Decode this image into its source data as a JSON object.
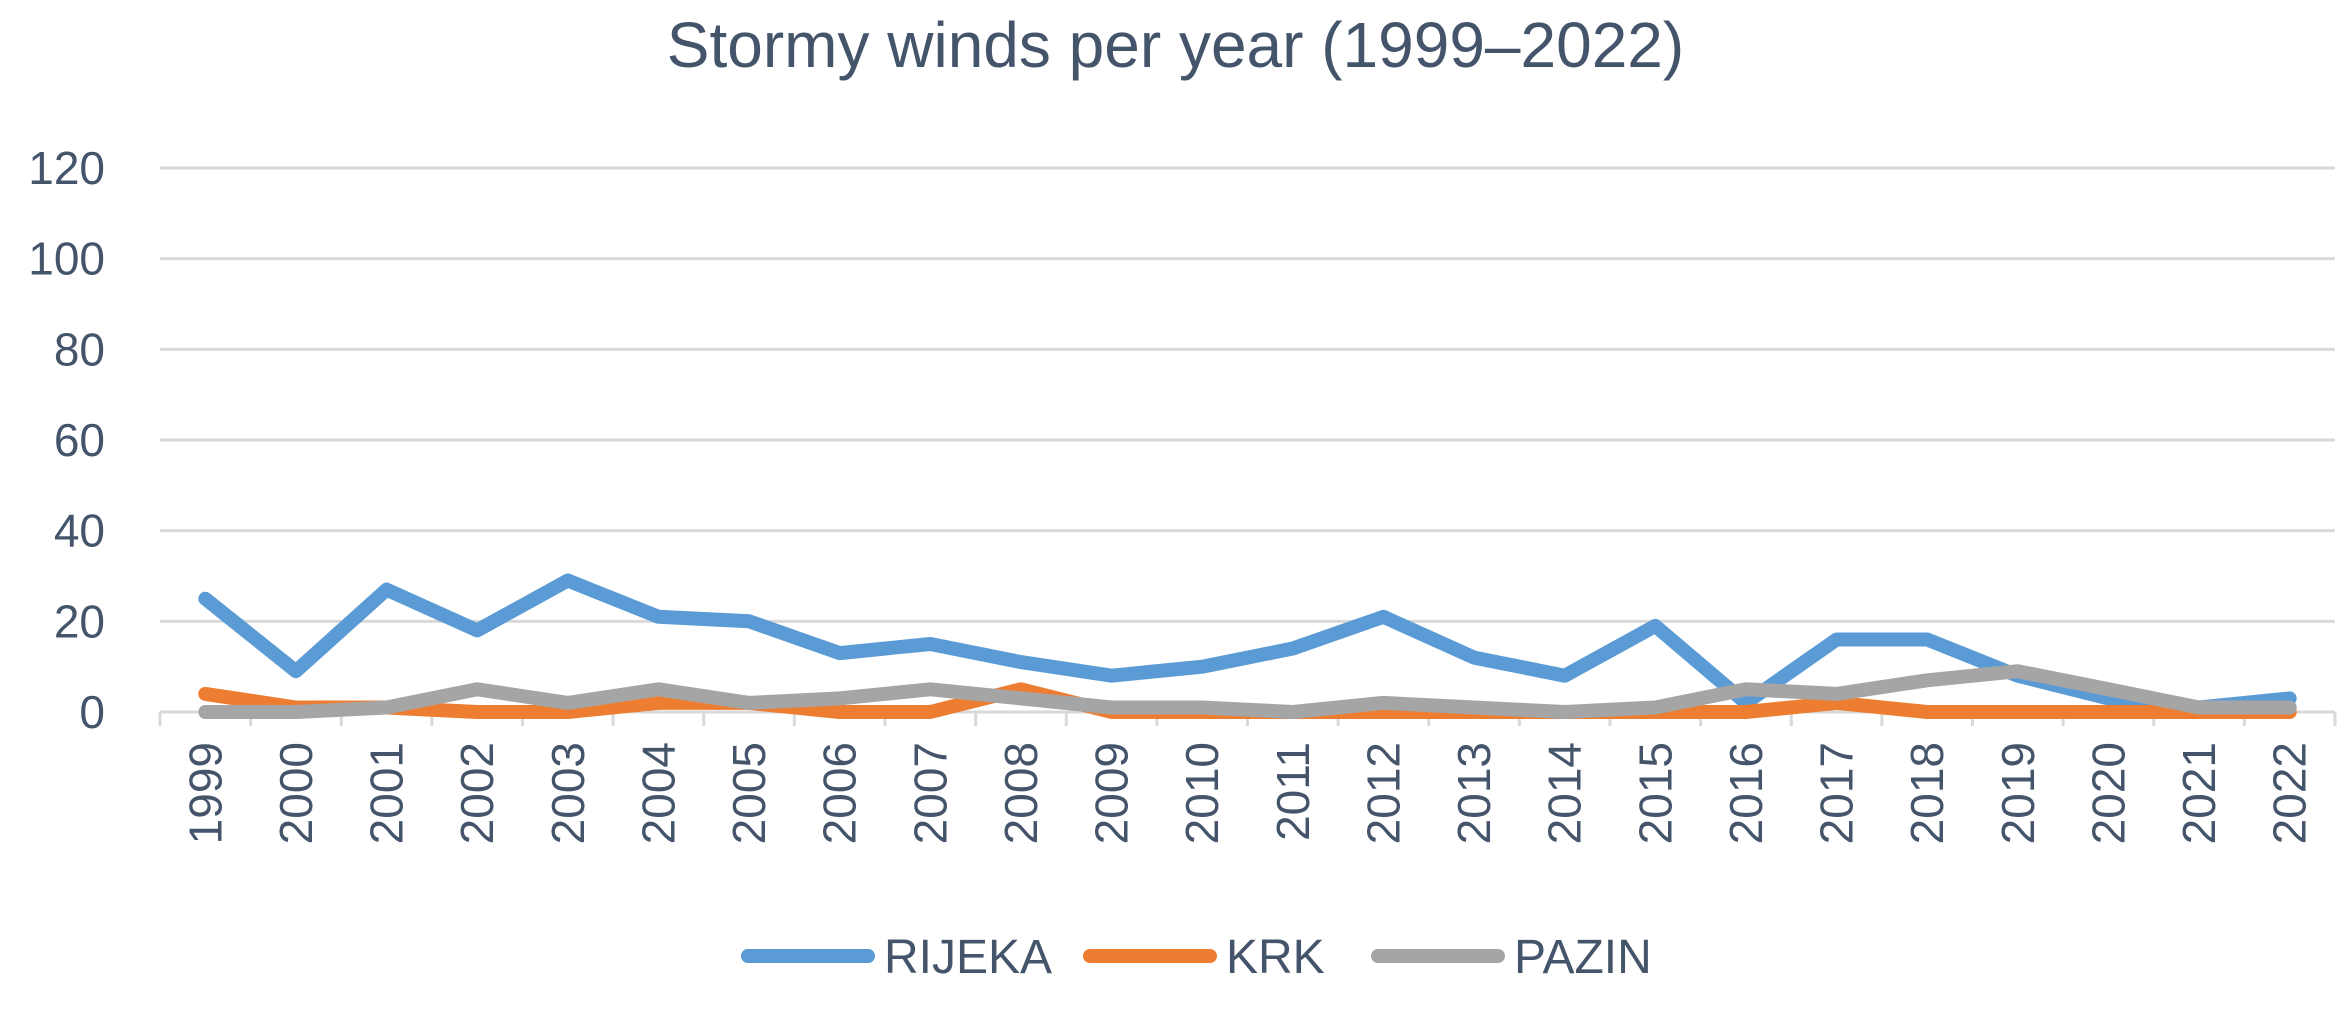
{
  "chart_data": {
    "type": "line",
    "title": "Stormy winds per year (1999–2022)",
    "xlabel": "",
    "ylabel": "",
    "ylim": [
      0,
      120
    ],
    "yticks": [
      0,
      20,
      40,
      60,
      80,
      100,
      120
    ],
    "grid": true,
    "legend_position": "bottom",
    "categories": [
      "1999",
      "2000",
      "2001",
      "2002",
      "2003",
      "2004",
      "2005",
      "2006",
      "2007",
      "2008",
      "2009",
      "2010",
      "2011",
      "2012",
      "2013",
      "2014",
      "2015",
      "2016",
      "2017",
      "2018",
      "2019",
      "2020",
      "2021",
      "2022"
    ],
    "series": [
      {
        "name": "RIJEKA",
        "color": "#5b9bd5",
        "values": [
          25,
          9,
          27,
          18,
          29,
          21,
          20,
          13,
          15,
          11,
          8,
          10,
          14,
          21,
          12,
          8,
          19,
          2,
          16,
          16,
          8,
          3,
          1,
          3
        ]
      },
      {
        "name": "KRK",
        "color": "#ed7d31",
        "values": [
          4,
          1,
          1,
          0,
          0,
          2,
          2,
          0,
          0,
          5,
          0,
          0,
          0,
          0,
          0,
          0,
          0,
          0,
          2,
          0,
          0,
          0,
          0,
          0
        ]
      },
      {
        "name": "PAZIN",
        "color": "#a5a5a5",
        "values": [
          0,
          0,
          1,
          5,
          2,
          5,
          2,
          3,
          5,
          3,
          1,
          1,
          0,
          2,
          1,
          0,
          1,
          5,
          4,
          7,
          9,
          5,
          1,
          1
        ]
      }
    ]
  }
}
